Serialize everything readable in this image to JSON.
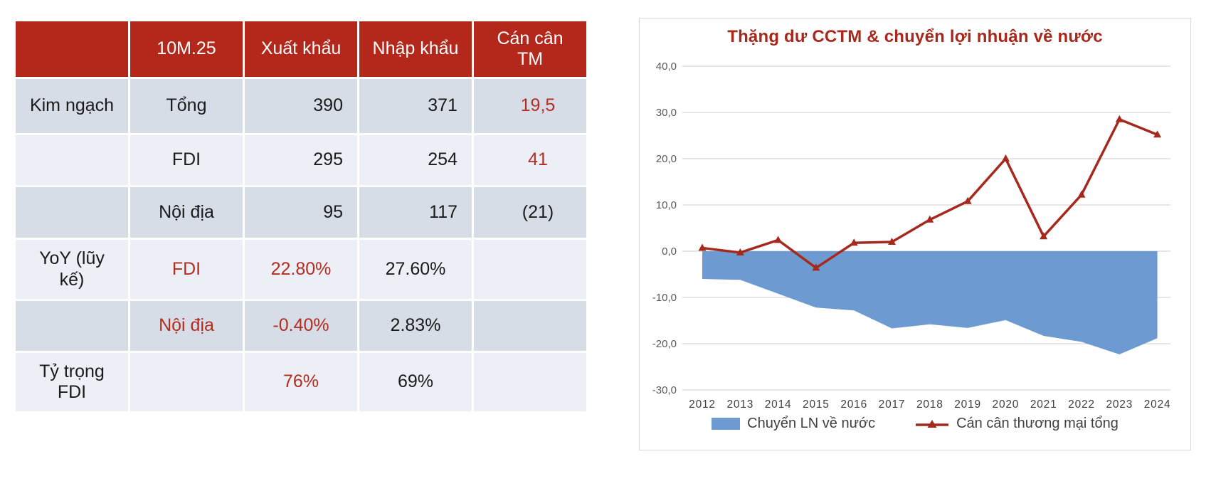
{
  "colors": {
    "header_red": "#B4281B",
    "accent_red": "#B52C20",
    "title_red": "#A8291C",
    "row_dark": "#D7DDE6",
    "row_light": "#ECEFF5",
    "area_blue": "#6D9BD1",
    "line_red": "#A5291C",
    "gridline_gray": "#D6D6D6"
  },
  "table": {
    "header": [
      "",
      "10M.25",
      "Xuất khẩu",
      "Nhập khẩu",
      "Cán cân TM"
    ],
    "rows": [
      {
        "cells": [
          {
            "t": "Kim ngạch",
            "cls": ""
          },
          {
            "t": "Tổng",
            "cls": ""
          },
          {
            "t": "390",
            "cls": ""
          },
          {
            "t": "371",
            "cls": ""
          },
          {
            "t": "19,5",
            "cls": "red"
          }
        ]
      },
      {
        "cells": [
          {
            "t": "",
            "cls": ""
          },
          {
            "t": "FDI",
            "cls": ""
          },
          {
            "t": "295",
            "cls": ""
          },
          {
            "t": "254",
            "cls": ""
          },
          {
            "t": "41",
            "cls": "red"
          }
        ]
      },
      {
        "cells": [
          {
            "t": "",
            "cls": ""
          },
          {
            "t": "Nội địa",
            "cls": ""
          },
          {
            "t": "95",
            "cls": ""
          },
          {
            "t": "117",
            "cls": ""
          },
          {
            "t": "(21)",
            "cls": ""
          }
        ]
      },
      {
        "cells": [
          {
            "t": "YoY (lũy kế)",
            "cls": ""
          },
          {
            "t": "FDI",
            "cls": "red"
          },
          {
            "t": "22.80%",
            "cls": "red"
          },
          {
            "t": "27.60%",
            "cls": ""
          },
          {
            "t": "",
            "cls": ""
          }
        ]
      },
      {
        "cells": [
          {
            "t": "",
            "cls": ""
          },
          {
            "t": "Nội địa",
            "cls": "red"
          },
          {
            "t": "-0.40%",
            "cls": "red"
          },
          {
            "t": "2.83%",
            "cls": ""
          },
          {
            "t": "",
            "cls": ""
          }
        ]
      },
      {
        "cells": [
          {
            "t": "Tỷ trọng FDI",
            "cls": ""
          },
          {
            "t": "",
            "cls": ""
          },
          {
            "t": "76%",
            "cls": "red"
          },
          {
            "t": "69%",
            "cls": ""
          },
          {
            "t": "",
            "cls": ""
          }
        ]
      }
    ]
  },
  "chart_data": {
    "type": "area+line combo",
    "title": "Thặng dư CCTM & chuyển lợi nhuận về nước",
    "x": [
      2012,
      2013,
      2014,
      2015,
      2016,
      2017,
      2018,
      2019,
      2020,
      2021,
      2022,
      2023,
      2024
    ],
    "series": [
      {
        "name": "Chuyển LN về nước",
        "type": "area",
        "color": "#6D9BD1",
        "values": [
          -6.0,
          -6.2,
          -9.2,
          -12.2,
          -12.8,
          -16.7,
          -15.8,
          -16.6,
          -14.9,
          -18.3,
          -19.6,
          -22.3,
          -18.8
        ]
      },
      {
        "name": "Cán cân thương mại tổng",
        "type": "line",
        "marker": "triangle",
        "color": "#A5291C",
        "values": [
          0.7,
          -0.3,
          2.4,
          -3.6,
          1.8,
          2.0,
          6.8,
          10.8,
          20.0,
          3.2,
          12.2,
          28.5,
          25.2
        ]
      }
    ],
    "ylim": [
      -30,
      40
    ],
    "ytick_step": 10,
    "ytick_labels": [
      "40,0",
      "30,0",
      "20,0",
      "10,0",
      "0,0",
      "-10,0",
      "-20,0",
      "-30,0"
    ],
    "grid": true,
    "legend_position": "bottom"
  }
}
